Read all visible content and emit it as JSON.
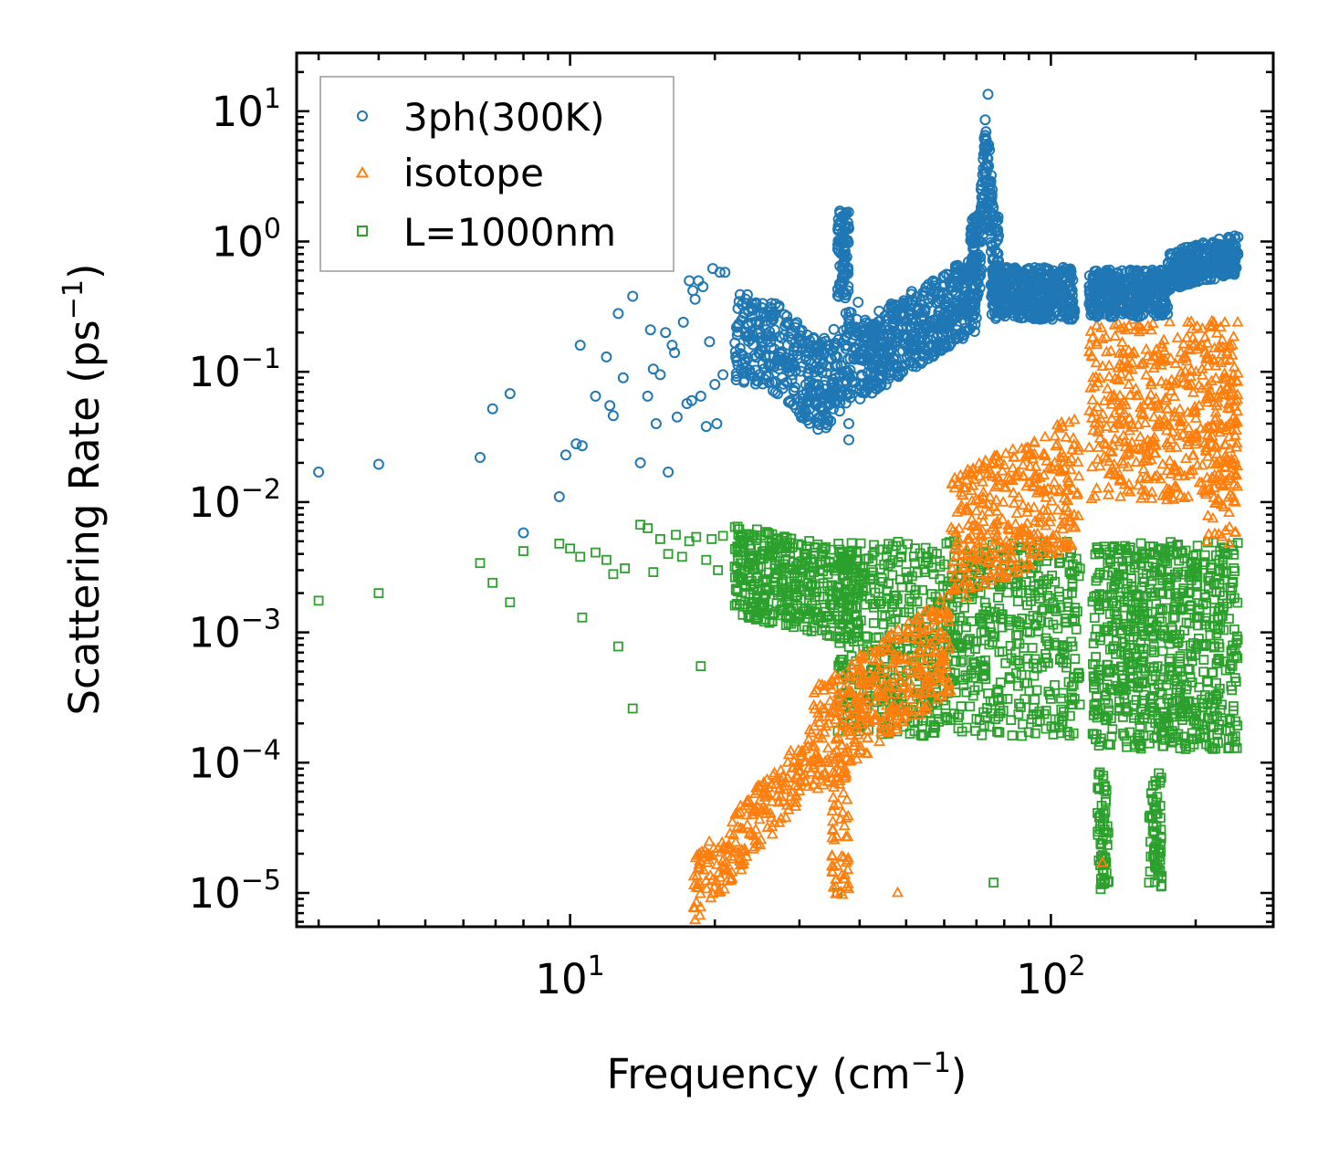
{
  "chart_data": {
    "type": "scatter",
    "xscale": "log",
    "yscale": "log",
    "xlabel": "Frequency (cm",
    "xlabel_sup": "−1",
    "xlabel_close": ")",
    "ylabel": "Scattering Rate (ps",
    "ylabel_sup": "−1",
    "ylabel_close": ")",
    "xlim": [
      2.7,
      290
    ],
    "ylim": [
      5.5e-06,
      28
    ],
    "x_major_ticks": [
      {
        "value": 10,
        "base": "10",
        "exp": "1"
      },
      {
        "value": 100,
        "base": "10",
        "exp": "2"
      }
    ],
    "y_major_ticks": [
      {
        "value": 1e-05,
        "base": "10",
        "exp": "−5"
      },
      {
        "value": 0.0001,
        "base": "10",
        "exp": "−4"
      },
      {
        "value": 0.001,
        "base": "10",
        "exp": "−3"
      },
      {
        "value": 0.01,
        "base": "10",
        "exp": "−2"
      },
      {
        "value": 0.1,
        "base": "10",
        "exp": "−1"
      },
      {
        "value": 1,
        "base": "10",
        "exp": "0"
      },
      {
        "value": 10,
        "base": "10",
        "exp": "1"
      }
    ],
    "legend_position": "top-left",
    "series": [
      {
        "name": "3ph(300K)",
        "marker": "circle",
        "color": "#1f77b4",
        "points": [
          [
            3.0,
            0.017
          ],
          [
            4.0,
            0.0195
          ],
          [
            6.5,
            0.022
          ],
          [
            6.9,
            0.052
          ],
          [
            7.5,
            0.068
          ],
          [
            8.0,
            0.0058
          ],
          [
            9.5,
            0.011
          ],
          [
            9.8,
            0.023
          ],
          [
            10.3,
            0.028
          ],
          [
            10.5,
            0.16
          ],
          [
            10.6,
            0.027
          ],
          [
            11.3,
            0.065
          ],
          [
            11.9,
            0.13
          ],
          [
            12.1,
            0.055
          ],
          [
            12.3,
            0.046
          ],
          [
            12.6,
            0.28
          ],
          [
            12.9,
            0.09
          ],
          [
            13.5,
            0.38
          ],
          [
            14.0,
            0.02
          ],
          [
            14.5,
            0.065
          ],
          [
            14.7,
            0.21
          ],
          [
            14.9,
            0.105
          ],
          [
            15.1,
            0.04
          ],
          [
            15.4,
            0.095
          ],
          [
            15.8,
            0.2
          ],
          [
            16.0,
            0.017
          ],
          [
            16.3,
            0.16
          ],
          [
            16.5,
            0.14
          ],
          [
            16.7,
            0.045
          ],
          [
            17.2,
            0.24
          ],
          [
            17.5,
            0.057
          ],
          [
            17.7,
            0.5
          ],
          [
            17.9,
            0.06
          ],
          [
            18.0,
            0.42
          ],
          [
            18.2,
            0.36
          ],
          [
            18.5,
            0.5
          ],
          [
            18.7,
            0.065
          ],
          [
            18.9,
            0.45
          ],
          [
            19.2,
            0.038
          ],
          [
            19.5,
            0.17
          ],
          [
            19.8,
            0.62
          ],
          [
            20.0,
            0.08
          ],
          [
            20.2,
            0.04
          ],
          [
            20.5,
            0.58
          ],
          [
            20.8,
            0.095
          ],
          [
            21.0,
            0.58
          ]
        ]
      },
      {
        "name": "isotope",
        "marker": "triangle",
        "color": "#ff7f0e",
        "points": []
      },
      {
        "name": "L=1000nm",
        "marker": "square",
        "color": "#2ca02c",
        "points": [
          [
            3.0,
            0.00175
          ],
          [
            4.0,
            0.002
          ],
          [
            6.5,
            0.0034
          ],
          [
            6.9,
            0.0024
          ],
          [
            7.5,
            0.0017
          ],
          [
            8.0,
            0.0042
          ],
          [
            9.5,
            0.0048
          ],
          [
            10.0,
            0.0044
          ],
          [
            10.5,
            0.0038
          ],
          [
            10.6,
            0.0013
          ],
          [
            11.3,
            0.0041
          ],
          [
            11.9,
            0.0036
          ],
          [
            12.3,
            0.0028
          ],
          [
            12.6,
            0.00078
          ],
          [
            13.0,
            0.0031
          ],
          [
            13.5,
            0.00026
          ],
          [
            14.0,
            0.0067
          ],
          [
            14.5,
            0.0063
          ],
          [
            14.9,
            0.0029
          ],
          [
            15.4,
            0.0052
          ],
          [
            16.0,
            0.004
          ],
          [
            16.6,
            0.0056
          ],
          [
            17.1,
            0.0038
          ],
          [
            17.7,
            0.005
          ],
          [
            18.3,
            0.0054
          ],
          [
            18.7,
            0.00055
          ],
          [
            19.2,
            0.0036
          ],
          [
            19.7,
            0.0052
          ],
          [
            20.3,
            0.003
          ],
          [
            20.8,
            0.0055
          ],
          [
            22.0,
            0.0032
          ]
        ]
      }
    ]
  }
}
